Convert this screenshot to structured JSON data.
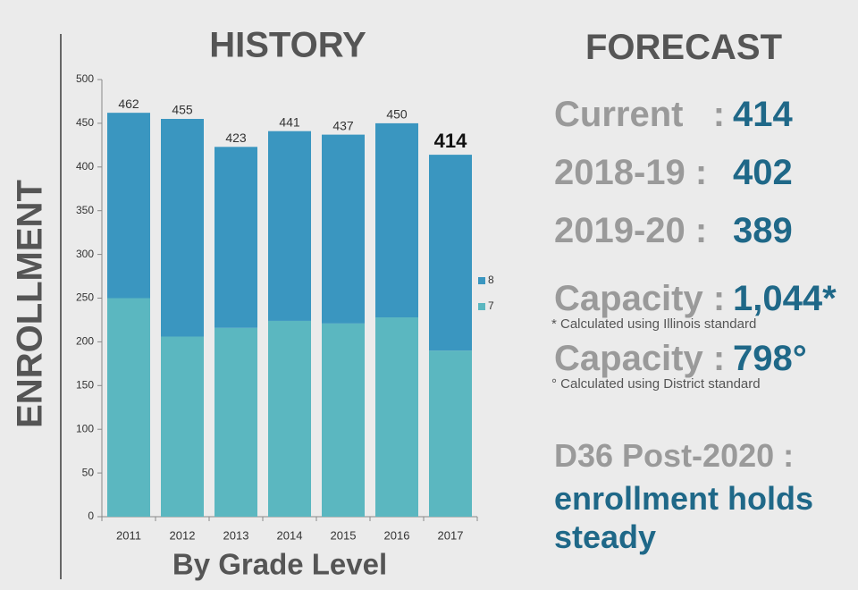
{
  "chart_data": {
    "type": "stacked_bar",
    "title": "HISTORY",
    "xlabel": "By Grade Level",
    "ylabel": "ENROLLMENT",
    "categories": [
      "2011",
      "2012",
      "2013",
      "2014",
      "2015",
      "2016",
      "2017"
    ],
    "series": [
      {
        "name": "7",
        "color": "#5bb7c0",
        "values": [
          250,
          206,
          216,
          224,
          221,
          228,
          190
        ]
      },
      {
        "name": "8",
        "color": "#3a96c0",
        "values": [
          212,
          249,
          207,
          217,
          216,
          222,
          224
        ]
      }
    ],
    "totals": [
      462,
      455,
      423,
      441,
      437,
      450,
      414
    ],
    "ylim": [
      0,
      500
    ],
    "yticks": [
      0,
      50,
      100,
      150,
      200,
      250,
      300,
      350,
      400,
      450,
      500
    ],
    "legend": "right"
  },
  "forecast": {
    "title": "FORECAST",
    "rows": [
      {
        "label": "Current   :",
        "value": "414"
      },
      {
        "label": "2018-19 :",
        "value": "402"
      },
      {
        "label": "2019-20 :",
        "value": "389"
      }
    ],
    "capacity": [
      {
        "label": "Capacity :",
        "value": "1,044*",
        "note": "* Calculated using Illinois standard"
      },
      {
        "label": "Capacity :",
        "value": "798°",
        "note": "° Calculated using District standard"
      }
    ],
    "conclusion": {
      "label": "D36 Post-2020 :",
      "text": "enrollment holds steady"
    }
  }
}
